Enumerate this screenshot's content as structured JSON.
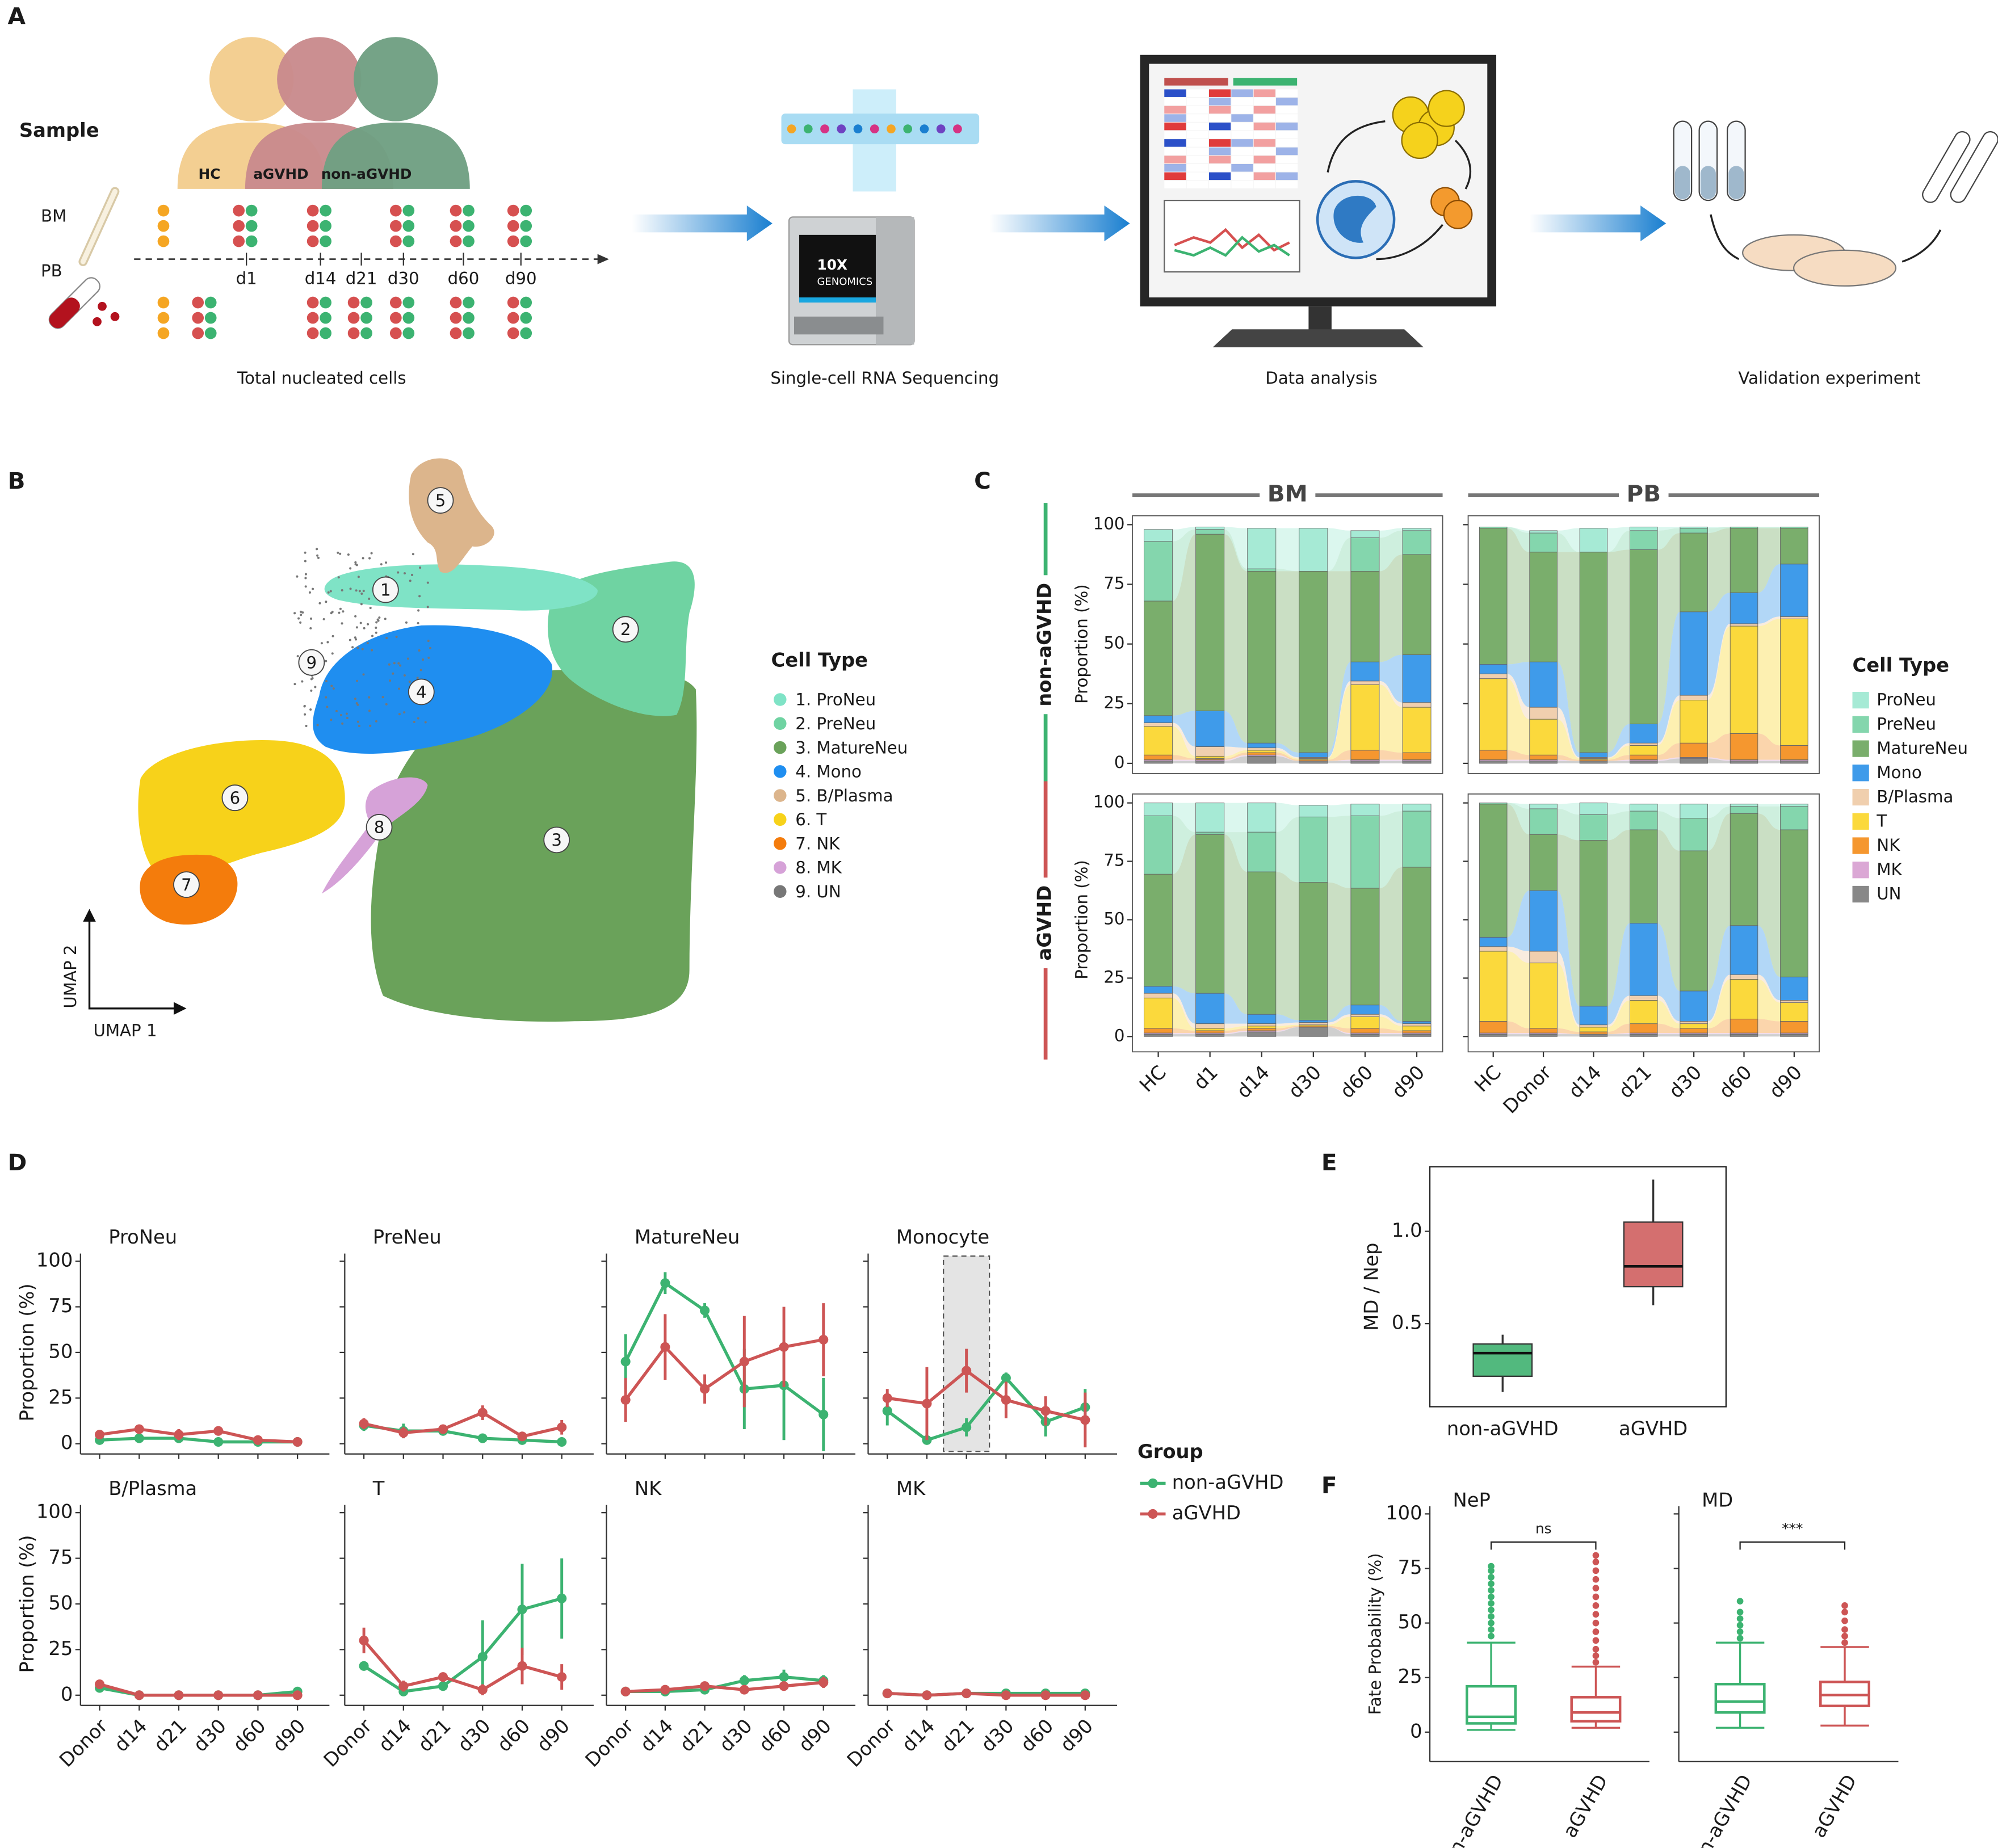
{
  "panel_a": {
    "label": "A",
    "sample": "Sample",
    "groups": [
      "HC",
      "aGVHD",
      "non-aGVHD"
    ],
    "tissues": [
      "BM",
      "PB"
    ],
    "timepoints": [
      "d1",
      "d14",
      "d21",
      "d30",
      "d60",
      "d90"
    ],
    "device": [
      "10X",
      "GENOMICS"
    ],
    "steps": [
      "Total nucleated cells",
      "Single-cell RNA Sequencing",
      "Data analysis",
      "Validation experiment"
    ]
  },
  "panel_b": {
    "label": "B",
    "clusters": [
      "1",
      "2",
      "3",
      "4",
      "5",
      "6",
      "7",
      "8",
      "9"
    ],
    "x_label": "UMAP 1",
    "y_label": "UMAP 2",
    "legend_title": "Cell Type",
    "legend": [
      "1. ProNeu",
      "2. PreNeu",
      "3. MatureNeu",
      "4. Mono",
      "5. B/Plasma",
      "6. T",
      "7. NK",
      "8. MK",
      "9. UN"
    ],
    "colors": [
      "#7fe3c6",
      "#6fd3a2",
      "#6aa25a",
      "#1f8ef0",
      "#dcb58c",
      "#f7d21a",
      "#f47c0c",
      "#d6a2d8",
      "#777777"
    ]
  },
  "chart_data": [
    {
      "type": "stacked_bar",
      "label": "C",
      "ylabel": "Proportion (%)",
      "ylim": [
        0,
        100
      ],
      "yticks": [
        0,
        25,
        50,
        75,
        100
      ],
      "columns": [
        {
          "name": "BM",
          "categories": [
            "HC",
            "d1",
            "d14",
            "d30",
            "d60",
            "d90"
          ]
        },
        {
          "name": "PB",
          "categories": [
            "HC",
            "Donor",
            "d14",
            "d21",
            "d30",
            "d60",
            "d90"
          ]
        }
      ],
      "rows": [
        {
          "name": "non-aGVHD",
          "color": "#3cb371"
        },
        {
          "name": "aGVHD",
          "color": "#cd5555"
        }
      ],
      "legend_title": "Cell Type",
      "series": [
        {
          "name": "ProNeu",
          "color": "#a6ead5"
        },
        {
          "name": "PreNeu",
          "color": "#84d6ad"
        },
        {
          "name": "MatureNeu",
          "color": "#7aae6c"
        },
        {
          "name": "Mono",
          "color": "#3f9bea"
        },
        {
          "name": "B/Plasma",
          "color": "#f0cfae"
        },
        {
          "name": "T",
          "color": "#fbd93c"
        },
        {
          "name": "NK",
          "color": "#f5972f"
        },
        {
          "name": "MK",
          "color": "#dba8d5"
        },
        {
          "name": "UN",
          "color": "#888888"
        }
      ],
      "panels": [
        {
          "values": [
            [
              5,
              1,
              17,
              18,
              3,
              1
            ],
            [
              25,
              2,
              1,
              0,
              14,
              10
            ],
            [
              48,
              74,
              72,
              76,
              38,
              42
            ],
            [
              3,
              15,
              2,
              2,
              8,
              20
            ],
            [
              1.5,
              4,
              1,
              0.5,
              1.5,
              2
            ],
            [
              12,
              1,
              1,
              0.5,
              27.5,
              19
            ],
            [
              2,
              0.5,
              1,
              0.5,
              4,
              3
            ],
            [
              0.5,
              0.5,
              0.5,
              0,
              0.5,
              0.5
            ],
            [
              1,
              1,
              3,
              1,
              1,
              1
            ]
          ]
        },
        {
          "values": [
            [
              0,
              1,
              10,
              1.5,
              0.5,
              0,
              0
            ],
            [
              0.5,
              8,
              0,
              8,
              2,
              0.5,
              0.5
            ],
            [
              57,
              46,
              84,
              73,
              33,
              27,
              15
            ],
            [
              4,
              19,
              2,
              8,
              35,
              13,
              22
            ],
            [
              2,
              5,
              0.5,
              1,
              2,
              1,
              1
            ],
            [
              30,
              15,
              0.5,
              4,
              18,
              45,
              53
            ],
            [
              4,
              2,
              0.5,
              2,
              6,
              11,
              6
            ],
            [
              0.5,
              0.5,
              0,
              0.5,
              0.5,
              0.5,
              0.5
            ],
            [
              1,
              1,
              1,
              1,
              2,
              1,
              1
            ]
          ]
        },
        {
          "values": [
            [
              5.5,
              12.5,
              12.5,
              5,
              5,
              3
            ],
            [
              25,
              1,
              17,
              28,
              31,
              24
            ],
            [
              48,
              68,
              61,
              59,
              50,
              66
            ],
            [
              3,
              13,
              4,
              1,
              4,
              1
            ],
            [
              2,
              2,
              1,
              1,
              1,
              1
            ],
            [
              13,
              1,
              1,
              0.5,
              5,
              2
            ],
            [
              2,
              1,
              1,
              0.5,
              2,
              1
            ],
            [
              0.5,
              0.5,
              0.5,
              0,
              0.5,
              0.5
            ],
            [
              1,
              1,
              2,
              4,
              1,
              1
            ]
          ]
        },
        {
          "values": [
            [
              0,
              2,
              5,
              3,
              6,
              1,
              1
            ],
            [
              0.5,
              11,
              11,
              8,
              14,
              3,
              10
            ],
            [
              57,
              24,
              71,
              40,
              60,
              48,
              63
            ],
            [
              4,
              26,
              8,
              31,
              13,
              21,
              10
            ],
            [
              2,
              5,
              1,
              2,
              1,
              2,
              1
            ],
            [
              30,
              28,
              2,
              10,
              2,
              17,
              8
            ],
            [
              5,
              2,
              1,
              4,
              2,
              6,
              5
            ],
            [
              0.5,
              0.5,
              0,
              0.5,
              0.5,
              0.5,
              0.5
            ],
            [
              1,
              1,
              1,
              1,
              1,
              1,
              1
            ]
          ]
        }
      ]
    },
    {
      "type": "line",
      "label": "D",
      "ylabel": "Proportion (%)",
      "ylim": [
        0,
        100
      ],
      "yticks": [
        0,
        25,
        50,
        75,
        100
      ],
      "categories": [
        "Donor",
        "d14",
        "d21",
        "d30",
        "d60",
        "d90"
      ],
      "legend_title": "Group",
      "series": [
        {
          "name": "non-aGVHD",
          "color": "#3cb371"
        },
        {
          "name": "aGVHD",
          "color": "#cd5555"
        }
      ],
      "panels": [
        {
          "title": "ProNeu",
          "values": [
            [
              2,
              3,
              3,
              1,
              1,
              1
            ],
            [
              5,
              8,
              5,
              7,
              2,
              1
            ]
          ],
          "errors": [
            [
              1,
              2,
              1,
              1,
              1,
              1
            ],
            [
              2,
              2,
              3,
              1,
              1,
              1
            ]
          ]
        },
        {
          "title": "PreNeu",
          "values": [
            [
              10,
              7,
              7,
              3,
              2,
              1
            ],
            [
              11,
              6,
              8,
              17,
              4,
              9
            ]
          ],
          "errors": [
            [
              3,
              4,
              2,
              1,
              1,
              1
            ],
            [
              3,
              3,
              2,
              4,
              2,
              4
            ]
          ]
        },
        {
          "title": "MatureNeu",
          "values": [
            [
              45,
              88,
              73,
              30,
              32,
              16
            ],
            [
              24,
              53,
              30,
              45,
              53,
              57
            ]
          ],
          "errors": [
            [
              15,
              6,
              4,
              22,
              30,
              20
            ],
            [
              12,
              18,
              8,
              25,
              22,
              20
            ]
          ]
        },
        {
          "title": "Monocyte",
          "highlight": "d21",
          "values": [
            [
              18,
              2,
              9,
              36,
              12,
              20
            ],
            [
              25,
              22,
              40,
              24,
              18,
              13
            ]
          ],
          "errors": [
            [
              8,
              1,
              5,
              3,
              8,
              10
            ],
            [
              5,
              20,
              12,
              10,
              8,
              15
            ]
          ]
        },
        {
          "title": "B/Plasma",
          "values": [
            [
              4,
              0,
              0,
              0,
              0,
              2
            ],
            [
              6,
              0,
              0,
              0,
              0,
              0
            ]
          ],
          "errors": [
            [
              1,
              0.5,
              0.5,
              0.5,
              0.5,
              1
            ],
            [
              2,
              0.5,
              0.5,
              0.5,
              0.5,
              0.5
            ]
          ]
        },
        {
          "title": "T",
          "values": [
            [
              16,
              2,
              5,
              21,
              47,
              53
            ],
            [
              30,
              5,
              10,
              3,
              16,
              10
            ]
          ],
          "errors": [
            [
              2,
              1,
              2,
              20,
              25,
              22
            ],
            [
              7,
              3,
              2,
              3,
              10,
              7
            ]
          ]
        },
        {
          "title": "NK",
          "values": [
            [
              2,
              2,
              3,
              8,
              10,
              8
            ],
            [
              2,
              3,
              5,
              3,
              5,
              7
            ]
          ],
          "errors": [
            [
              1,
              1,
              1,
              3,
              4,
              3
            ],
            [
              1,
              1,
              2,
              1,
              2,
              3
            ]
          ]
        },
        {
          "title": "MK",
          "values": [
            [
              1,
              0,
              1,
              1,
              1,
              1
            ],
            [
              1,
              0,
              1,
              0,
              0,
              0
            ]
          ],
          "errors": [
            [
              0.5,
              0.5,
              0.5,
              0.5,
              0.5,
              0.5
            ],
            [
              0.5,
              0.5,
              0.5,
              0.5,
              0.5,
              0.5
            ]
          ]
        }
      ]
    },
    {
      "type": "box",
      "label": "E",
      "ylabel": "MD / Nep",
      "ylim": [
        0.05,
        1.35
      ],
      "yticks": [
        0.5,
        {
          "value": 1,
          "label": "1.0"
        }
      ],
      "categories": [
        "non-aGVHD",
        "aGVHD"
      ],
      "colors": [
        "#52b97e",
        "#d46f6f"
      ],
      "filled": true,
      "panels": [
        {
          "boxes": [
            {
              "low": 0.13,
              "q1": 0.215,
              "median": 0.34,
              "q3": 0.39,
              "high": 0.44
            },
            {
              "low": 0.6,
              "q1": 0.7,
              "median": 0.81,
              "q3": 1.05,
              "high": 1.28
            }
          ]
        }
      ]
    },
    {
      "type": "box",
      "label": "F",
      "ylabel": "Fate Probability (%)",
      "ylim": [
        -13.5,
        103.5
      ],
      "yticks": [
        0,
        25,
        50,
        75,
        100
      ],
      "categories": [
        "non-aGVHD",
        "aGVHD"
      ],
      "colors": [
        "#3cb371",
        "#cd5555"
      ],
      "filled": false,
      "panels": [
        {
          "title": "NeP",
          "annotation": "ns",
          "boxes": [
            {
              "low": 1,
              "q1": 4,
              "median": 7,
              "q3": 21,
              "high": 41,
              "outliers": [
                44,
                47,
                50,
                53,
                56,
                59,
                62,
                65,
                68,
                71,
                74,
                76
              ]
            },
            {
              "low": 2,
              "q1": 5,
              "median": 9,
              "q3": 16,
              "high": 30,
              "outliers": [
                32,
                35,
                38,
                42,
                46,
                50,
                54,
                58,
                62,
                66,
                70,
                74,
                78,
                81
              ]
            }
          ]
        },
        {
          "title": "MD",
          "annotation": "***",
          "boxes": [
            {
              "low": 2,
              "q1": 9,
              "median": 14,
              "q3": 22,
              "high": 41,
              "outliers": [
                43,
                46,
                49,
                52,
                55,
                60
              ]
            },
            {
              "low": 3,
              "q1": 12,
              "median": 17,
              "q3": 23,
              "high": 39,
              "outliers": [
                41,
                44,
                47,
                51,
                55,
                58
              ]
            }
          ]
        }
      ]
    }
  ]
}
